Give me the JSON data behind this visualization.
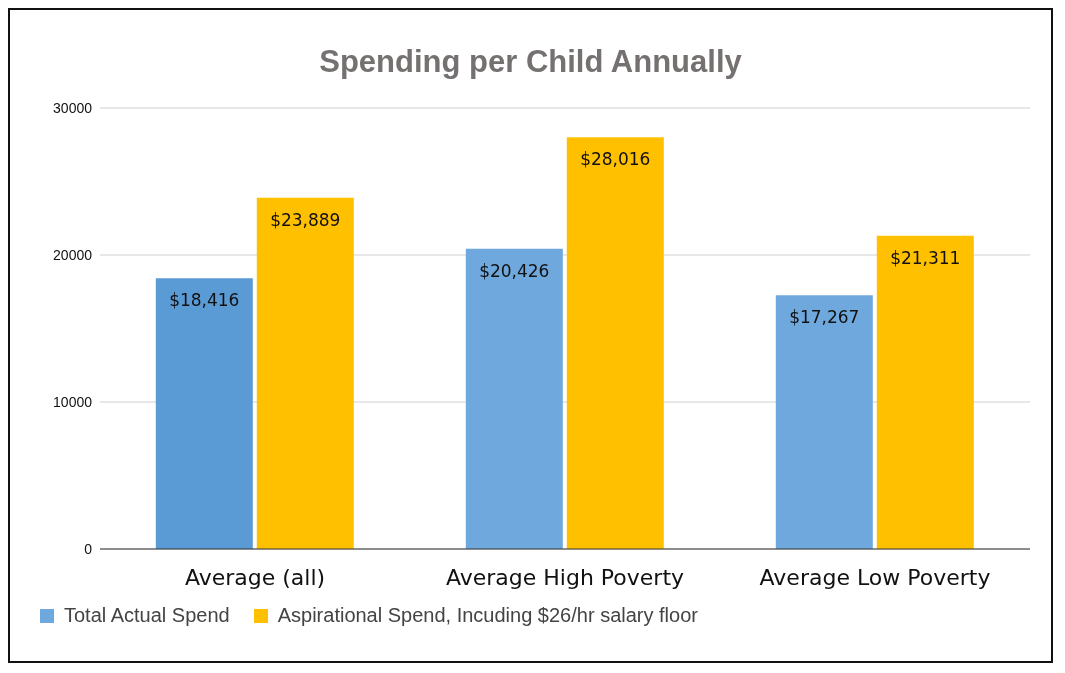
{
  "chart_data": {
    "type": "bar",
    "title": "Spending per Child Annually",
    "categories": [
      "Average (all)",
      "Average High Poverty",
      "Average Low Poverty"
    ],
    "series": [
      {
        "name": "Total Actual Spend",
        "color": "#6fa8dc",
        "colors": [
          "#5b9bd5",
          "#6fa8dc",
          "#6fa8dc"
        ],
        "values": [
          18416,
          20426,
          17267
        ],
        "value_labels": [
          "$18,416",
          "$20,426",
          "$17,267"
        ]
      },
      {
        "name": "Aspirational Spend, Incuding $26/hr salary floor",
        "color": "#ffc000",
        "values": [
          23889,
          28016,
          21311
        ],
        "value_labels": [
          "$23,889",
          "$28,016",
          "$21,311"
        ]
      }
    ],
    "ylim": [
      0,
      30000
    ],
    "yticks": [
      0,
      10000,
      20000,
      30000
    ],
    "grid": "y",
    "legend": "bottom left"
  }
}
